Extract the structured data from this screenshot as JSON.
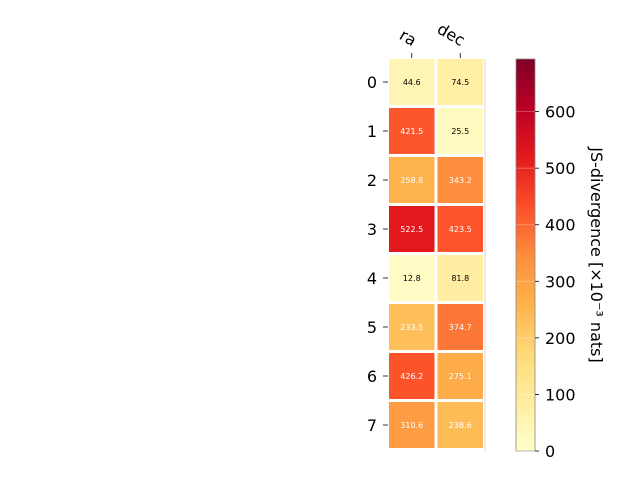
{
  "chart_data": {
    "type": "heatmap",
    "title": "",
    "columns": [
      "ra",
      "dec"
    ],
    "rows": [
      "0",
      "1",
      "2",
      "3",
      "4",
      "5",
      "6",
      "7"
    ],
    "values": [
      [
        44.6,
        74.5
      ],
      [
        421.5,
        25.5
      ],
      [
        258.8,
        343.2
      ],
      [
        522.5,
        423.5
      ],
      [
        12.8,
        81.8
      ],
      [
        233.5,
        374.7
      ],
      [
        426.2,
        275.1
      ],
      [
        310.6,
        238.6
      ]
    ],
    "value_labels": [
      [
        "44.6",
        "74.5"
      ],
      [
        "421.5",
        "25.5"
      ],
      [
        "258.8",
        "343.2"
      ],
      [
        "522.5",
        "423.5"
      ],
      [
        "12.8",
        "81.8"
      ],
      [
        "233.5",
        "374.7"
      ],
      [
        "426.2",
        "275.1"
      ],
      [
        "310.6",
        "238.6"
      ]
    ],
    "colorbar": {
      "label": "JS-divergence [×10⁻³ nats]",
      "range": [
        0,
        693
      ],
      "ticks": [
        0,
        100,
        200,
        300,
        400,
        500,
        600
      ],
      "tick_labels": [
        "0",
        "100",
        "200",
        "300",
        "400",
        "500",
        "600"
      ],
      "colormap": "YlOrRd"
    },
    "grid": false,
    "legend": "none"
  }
}
